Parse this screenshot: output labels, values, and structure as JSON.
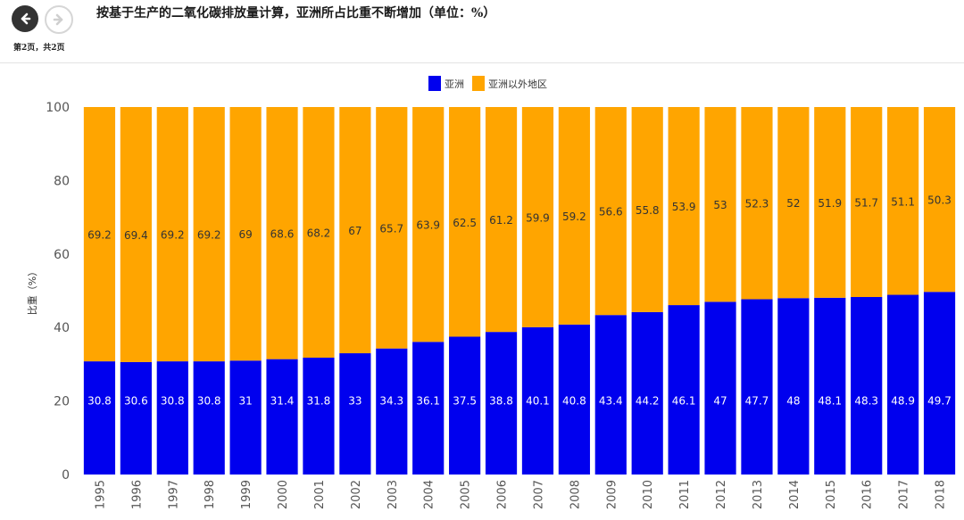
{
  "header": {
    "title": "按基于生产的二氧化碳排放量计算，亚洲所占比重不断增加（单位：%）",
    "page_indicator": "第2页，共2页",
    "prev_icon": "arrow-left-icon",
    "next_icon": "arrow-right-icon"
  },
  "colors": {
    "asia": "#0000ee",
    "rest": "#ffa500",
    "label_on_asia": "#ffffff",
    "label_on_rest": "#333333"
  },
  "chart_data": {
    "type": "bar",
    "stacked": true,
    "title": "",
    "xlabel": "",
    "ylabel": "比重（%）",
    "ylim": [
      0,
      100
    ],
    "yticks": [
      0,
      20,
      40,
      60,
      80,
      100
    ],
    "grid": false,
    "legend_position": "top-center",
    "categories": [
      "1995",
      "1996",
      "1997",
      "1998",
      "1999",
      "2000",
      "2001",
      "2002",
      "2003",
      "2004",
      "2005",
      "2006",
      "2007",
      "2008",
      "2009",
      "2010",
      "2011",
      "2012",
      "2013",
      "2014",
      "2015",
      "2016",
      "2017",
      "2018"
    ],
    "series": [
      {
        "name": "亚洲",
        "values": [
          30.8,
          30.6,
          30.8,
          30.8,
          31,
          31.4,
          31.8,
          33,
          34.3,
          36.1,
          37.5,
          38.8,
          40.1,
          40.8,
          43.4,
          44.2,
          46.1,
          47,
          47.7,
          48,
          48.1,
          48.3,
          48.9,
          49.7
        ]
      },
      {
        "name": "亚洲以外地区",
        "values": [
          69.2,
          69.4,
          69.2,
          69.2,
          69,
          68.6,
          68.2,
          67,
          65.7,
          63.9,
          62.5,
          61.2,
          59.9,
          59.2,
          56.6,
          55.8,
          53.9,
          53,
          52.3,
          52,
          51.9,
          51.7,
          51.1,
          50.3
        ]
      }
    ]
  }
}
